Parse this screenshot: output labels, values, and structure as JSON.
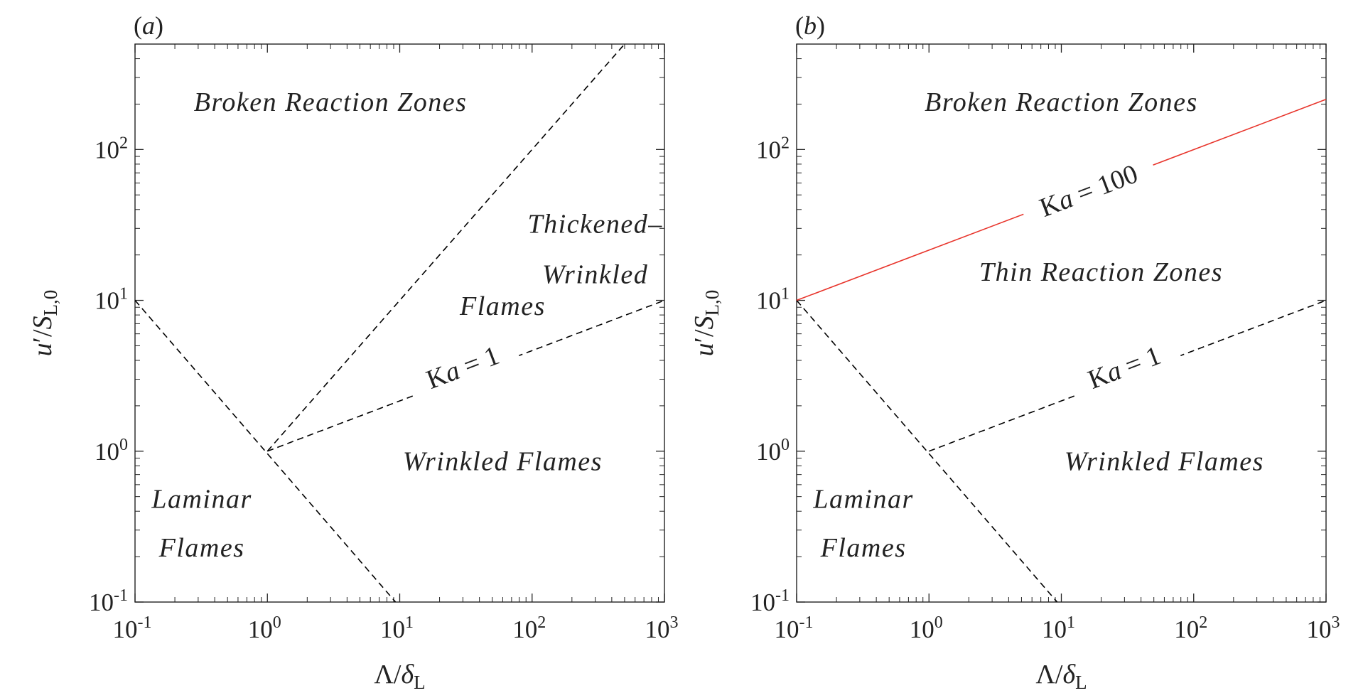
{
  "chart_data": [
    {
      "type": "line",
      "panel_label": "(a)",
      "panel_label_text": "a",
      "xlabel": "Λ/δL",
      "ylabel": "u′/SL,0",
      "xscale": "log",
      "yscale": "log",
      "xlim": [
        0.1,
        1000
      ],
      "ylim": [
        0.1,
        500
      ],
      "x_ticks": [
        {
          "base": "10",
          "exp": "-1",
          "value": 0.1
        },
        {
          "base": "10",
          "exp": "0",
          "value": 1
        },
        {
          "base": "10",
          "exp": "1",
          "value": 10
        },
        {
          "base": "10",
          "exp": "2",
          "value": 100
        },
        {
          "base": "10",
          "exp": "3",
          "value": 1000
        }
      ],
      "y_ticks": [
        {
          "base": "10",
          "exp": "-1",
          "value": 0.1
        },
        {
          "base": "10",
          "exp": "0",
          "value": 1
        },
        {
          "base": "10",
          "exp": "1",
          "value": 10
        },
        {
          "base": "10",
          "exp": "2",
          "value": 100
        }
      ],
      "grid": false,
      "series": [
        {
          "style": "dashed",
          "color": "#000000",
          "points": [
            [
              0.1,
              10
            ],
            [
              9.3,
              0.1
            ]
          ]
        },
        {
          "style": "dashed",
          "color": "#000000",
          "points": [
            [
              1,
              1
            ],
            [
              500,
              500
            ]
          ]
        },
        {
          "style": "dashed",
          "color": "#000000",
          "points": [
            [
              1,
              1
            ],
            [
              1000,
              10
            ]
          ]
        }
      ],
      "line_labels": [
        {
          "text": "Ka = 1",
          "ka_K": "K",
          "ka_a": "a",
          "ka_rest": " = 1",
          "at": [
            31.6,
            3.16
          ]
        }
      ],
      "regions": [
        {
          "text": "Broken Reaction Zones",
          "at": [
            3,
            180
          ]
        },
        {
          "text": "Thickened–",
          "at": [
            300,
            28
          ]
        },
        {
          "text": "Wrinkled",
          "at": [
            300,
            13
          ]
        },
        {
          "text": "Flames",
          "at": [
            60,
            8
          ]
        },
        {
          "text": "Wrinkled Flames",
          "at": [
            60,
            0.75
          ]
        },
        {
          "text": "Laminar",
          "at": [
            0.32,
            0.42
          ]
        },
        {
          "text": "Flames",
          "at": [
            0.32,
            0.2
          ]
        }
      ]
    },
    {
      "type": "line",
      "panel_label": "(b)",
      "panel_label_text": "b",
      "xlabel": "Λ/δL",
      "ylabel": "u′/SL,0",
      "xscale": "log",
      "yscale": "log",
      "xlim": [
        0.1,
        1000
      ],
      "ylim": [
        0.1,
        500
      ],
      "x_ticks": [
        {
          "base": "10",
          "exp": "-1",
          "value": 0.1
        },
        {
          "base": "10",
          "exp": "0",
          "value": 1
        },
        {
          "base": "10",
          "exp": "1",
          "value": 10
        },
        {
          "base": "10",
          "exp": "2",
          "value": 100
        },
        {
          "base": "10",
          "exp": "3",
          "value": 1000
        }
      ],
      "y_ticks": [
        {
          "base": "10",
          "exp": "-1",
          "value": 0.1
        },
        {
          "base": "10",
          "exp": "0",
          "value": 1
        },
        {
          "base": "10",
          "exp": "1",
          "value": 10
        },
        {
          "base": "10",
          "exp": "2",
          "value": 100
        }
      ],
      "grid": false,
      "series": [
        {
          "style": "dashed",
          "color": "#000000",
          "points": [
            [
              0.1,
              10
            ],
            [
              9.3,
              0.1
            ]
          ]
        },
        {
          "style": "dashed",
          "color": "#000000",
          "points": [
            [
              1,
              1
            ],
            [
              1000,
              10
            ]
          ]
        },
        {
          "style": "solid",
          "color": "#e8342b",
          "points": [
            [
              0.1,
              10
            ],
            [
              1000,
              215
            ]
          ]
        }
      ],
      "line_labels": [
        {
          "text": "Ka = 1",
          "ka_K": "K",
          "ka_a": "a",
          "ka_rest": " = 1",
          "at": [
            31.6,
            3.16
          ]
        },
        {
          "text": "Ka = 100",
          "ka_K": "K",
          "ka_a": "a",
          "ka_rest": " = 100",
          "at": [
            17,
            47
          ]
        }
      ],
      "regions": [
        {
          "text": "Broken Reaction Zones",
          "at": [
            10,
            180
          ]
        },
        {
          "text": "Thin Reaction Zones",
          "at": [
            20,
            13.5
          ]
        },
        {
          "text": "Wrinkled Flames",
          "at": [
            60,
            0.75
          ]
        },
        {
          "text": "Laminar",
          "at": [
            0.32,
            0.42
          ]
        },
        {
          "text": "Flames",
          "at": [
            0.32,
            0.2
          ]
        }
      ]
    }
  ]
}
